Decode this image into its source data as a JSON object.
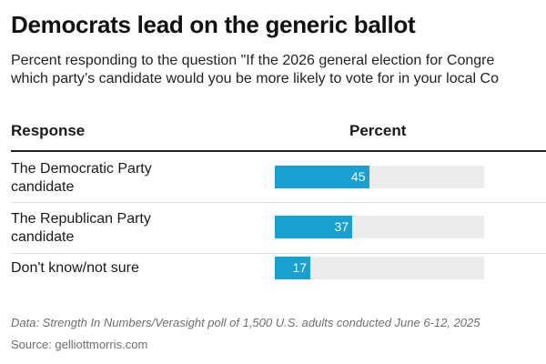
{
  "header": {
    "title": "Democrats lead on the generic ballot",
    "subtitle_line1": "Percent responding to the question \"If the 2026 general election for Congre",
    "subtitle_line2": "which party’s candidate would you be more likely to vote for in your local Co"
  },
  "table": {
    "col_response": "Response",
    "col_percent": "Percent"
  },
  "chart_data": {
    "type": "bar",
    "orientation": "horizontal",
    "categories": [
      "The Democratic Party candidate",
      "The Republican Party candidate",
      "Don't know/not sure"
    ],
    "values": [
      45,
      37,
      17
    ],
    "xlim": [
      0,
      100
    ],
    "bar_color": "#1a9fd3",
    "track_color": "#ececec",
    "rows": [
      {
        "label_line1": "The Democratic Party",
        "label_line2": "candidate",
        "value": 45,
        "value_label": "45"
      },
      {
        "label_line1": "The Republican Party",
        "label_line2": "candidate",
        "value": 37,
        "value_label": "37"
      },
      {
        "label_line1": "Don't know/not sure",
        "label_line2": "",
        "value": 17,
        "value_label": "17"
      }
    ]
  },
  "footer": {
    "note": "Data: Strength In Numbers/Verasight poll of 1,500 U.S. adults conducted June 6-12, 2025",
    "source": "Source: gelliottmorris.com"
  }
}
